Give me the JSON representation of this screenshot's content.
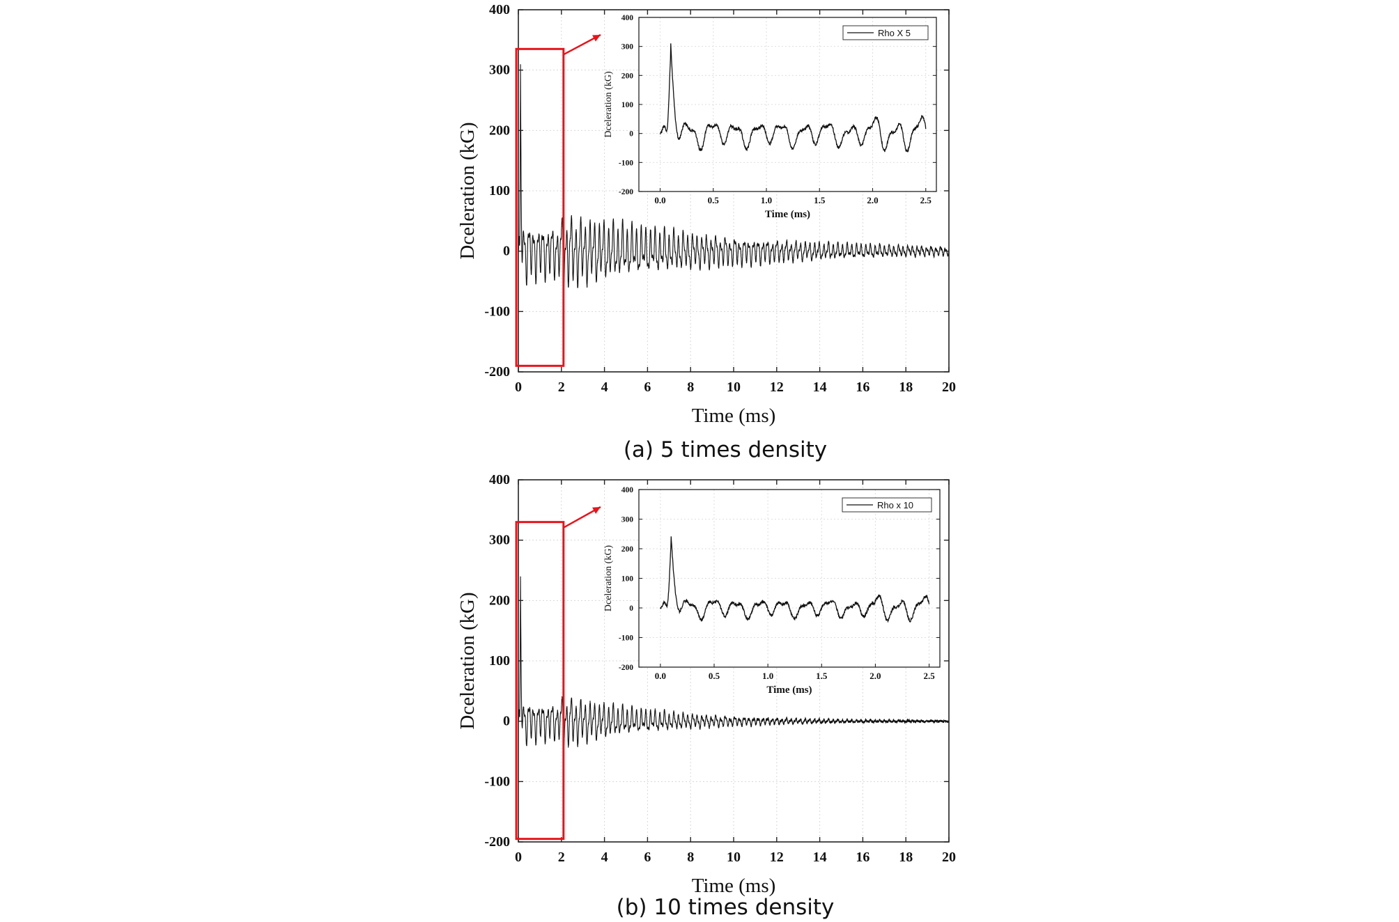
{
  "chart_data": [
    {
      "type": "line",
      "caption": "(a) 5 times density",
      "xlabel": "Time (ms)",
      "ylabel": "Dceleration (kG)",
      "xlim": [
        0,
        20
      ],
      "ylim": [
        -200,
        400
      ],
      "xticks": [
        "0",
        "2",
        "4",
        "6",
        "8",
        "10",
        "12",
        "14",
        "16",
        "18",
        "20"
      ],
      "yticks": [
        "-200",
        "-100",
        "0",
        "100",
        "200",
        "300",
        "400"
      ],
      "grid": true,
      "highlight_range_x": [
        0,
        2
      ],
      "highlight_range_y": [
        -190,
        335
      ],
      "highlight_color": "#e8141b",
      "signal": {
        "peak": 275,
        "peak_time": 0.1,
        "envelope_0_2ms": 70,
        "envelope_20ms": 8
      },
      "inset": {
        "xlabel": "Time (ms)",
        "ylabel": "Dceleration (kG)",
        "xlim": [
          -0.2,
          2.6
        ],
        "ylim": [
          -200,
          400
        ],
        "xticks": [
          "0.0",
          "0.5",
          "1.0",
          "1.5",
          "2.0",
          "2.5"
        ],
        "yticks": [
          "-200",
          "-100",
          "0",
          "100",
          "200",
          "300",
          "400"
        ],
        "legend": "Rho X 5",
        "legend_position": "top-right"
      }
    },
    {
      "type": "line",
      "caption": "(b) 10 times density",
      "xlabel": "Time (ms)",
      "ylabel": "Dceleration (kG)",
      "xlim": [
        0,
        20
      ],
      "ylim": [
        -200,
        400
      ],
      "xticks": [
        "0",
        "2",
        "4",
        "6",
        "8",
        "10",
        "12",
        "14",
        "16",
        "18",
        "20"
      ],
      "yticks": [
        "-200",
        "-100",
        "0",
        "100",
        "200",
        "300",
        "400"
      ],
      "grid": true,
      "highlight_range_x": [
        0,
        2
      ],
      "highlight_range_y": [
        -195,
        330
      ],
      "highlight_color": "#e8141b",
      "signal": {
        "peak": 215,
        "peak_time": 0.1,
        "envelope_0_2ms": 50,
        "envelope_20ms": 1
      },
      "inset": {
        "xlabel": "Time (ms)",
        "ylabel": "Dceleration (kG)",
        "xlim": [
          -0.2,
          2.6
        ],
        "ylim": [
          -200,
          400
        ],
        "xticks": [
          "0.0",
          "0.5",
          "1.0",
          "1.5",
          "2.0",
          "2.5"
        ],
        "yticks": [
          "-200",
          "-100",
          "0",
          "100",
          "200",
          "300",
          "400"
        ],
        "legend": "Rho x 10",
        "legend_position": "top-right"
      }
    }
  ]
}
